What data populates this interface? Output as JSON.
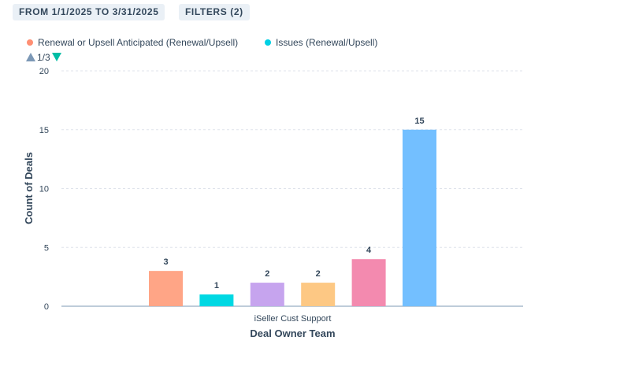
{
  "filters": {
    "date_range": "FROM 1/1/2025 TO 3/31/2025",
    "filters_label": "FILTERS (2)"
  },
  "legend": {
    "items": [
      {
        "label": "Renewal or Upsell Anticipated (Renewal/Upsell)",
        "color": "#ff8f73"
      },
      {
        "label": "Issues (Renewal/Upsell)",
        "color": "#00d0e4"
      }
    ],
    "page": "1/3"
  },
  "chart_data": {
    "type": "bar",
    "xlabel": "Deal Owner Team",
    "ylabel": "Count of Deals",
    "ylim": [
      0,
      20
    ],
    "yticks": [
      0,
      5,
      10,
      15,
      20
    ],
    "grid": true,
    "categories": [
      "iSeller Cust Support"
    ],
    "series": [
      {
        "name": "Renewal or Upsell Anticipated (Renewal/Upsell)",
        "values": [
          3
        ],
        "color": "#ffa586"
      },
      {
        "name": "Issues (Renewal/Upsell)",
        "values": [
          1
        ],
        "color": "#00d8e3"
      },
      {
        "values": [
          2
        ],
        "color": "#c6a4ee"
      },
      {
        "values": [
          2
        ],
        "color": "#fdc884"
      },
      {
        "values": [
          4
        ],
        "color": "#f38aaf"
      },
      {
        "values": [
          15
        ],
        "color": "#73bfff"
      }
    ]
  }
}
